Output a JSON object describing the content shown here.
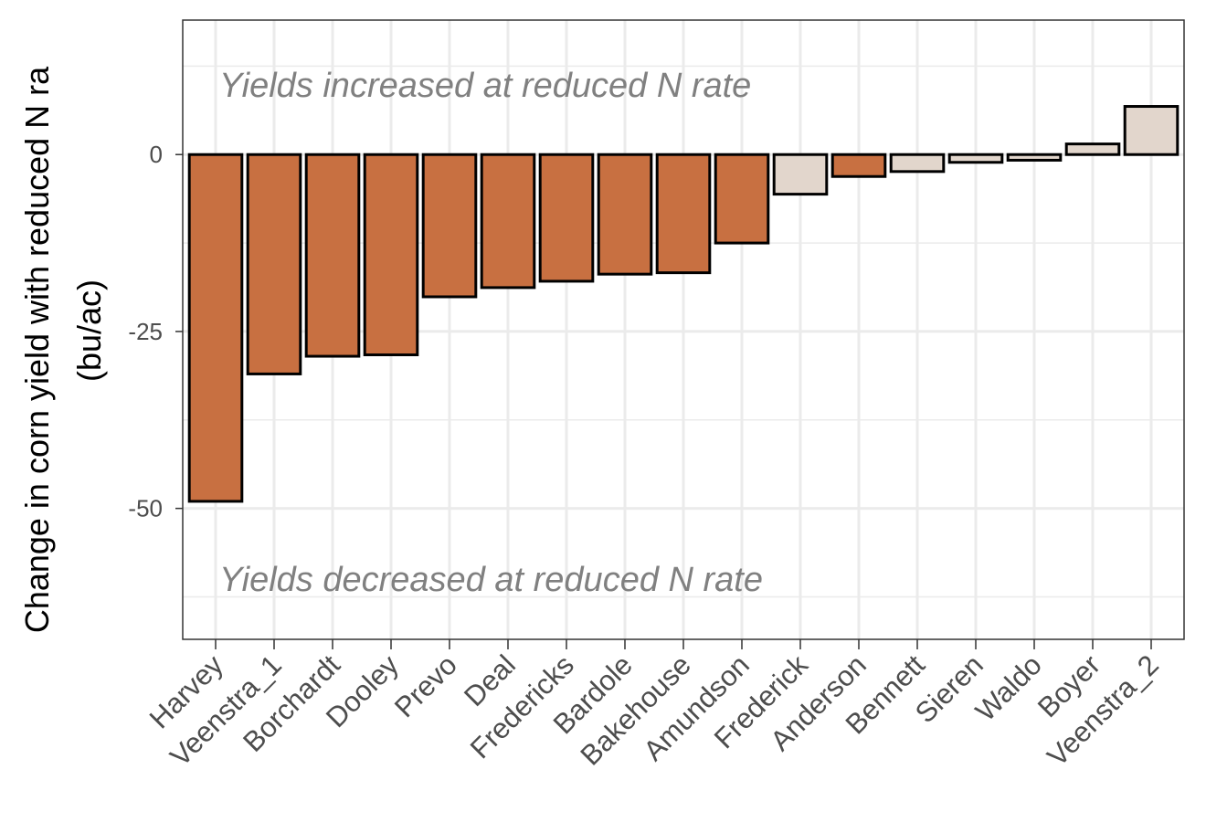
{
  "chart_data": {
    "type": "bar",
    "categories": [
      "Harvey",
      "Veenstra_1",
      "Borchardt",
      "Dooley",
      "Prevo",
      "Deal",
      "Fredericks",
      "Bardole",
      "Bakehouse",
      "Amundson",
      "Frederick",
      "Anderson",
      "Bennett",
      "Sieren",
      "Waldo",
      "Boyer",
      "Veenstra_2"
    ],
    "values": [
      -49,
      -31,
      -28.5,
      -28.3,
      -20.1,
      -18.8,
      -17.9,
      -16.9,
      -16.7,
      -12.5,
      -5.6,
      -3.1,
      -2.4,
      -1.1,
      -0.8,
      1.5,
      6.8
    ],
    "significant": [
      true,
      true,
      true,
      true,
      true,
      true,
      true,
      true,
      true,
      true,
      false,
      true,
      false,
      false,
      false,
      false,
      false
    ],
    "colors": {
      "significant": "#c87041",
      "not_significant": "#e2d6cc",
      "outline": "#000000"
    },
    "ylabel_line1": "Change in corn yield with reduced N ra",
    "ylabel_line2": "(bu/ac)",
    "yticks": [
      0,
      -25,
      -50
    ],
    "ylim": [
      -68.5,
      19
    ],
    "grid": true,
    "annotations": {
      "top": "Yields increased at reduced N rate",
      "bottom": "Yields decreased at reduced N rate"
    }
  }
}
